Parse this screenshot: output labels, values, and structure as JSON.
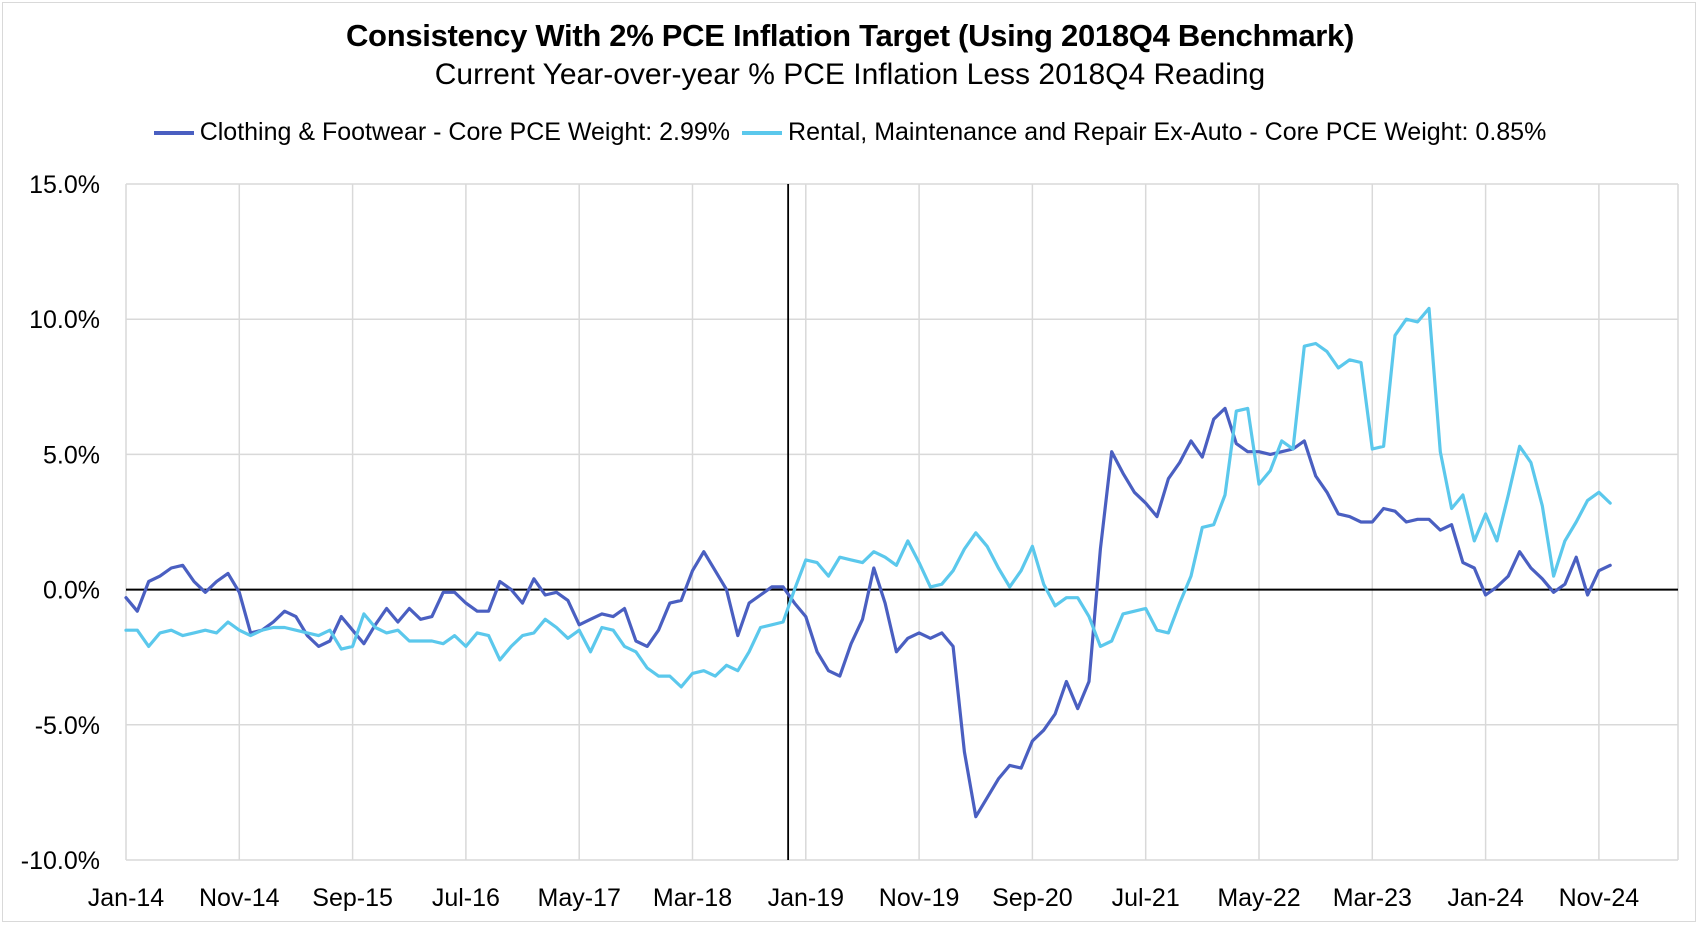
{
  "chart_data": {
    "type": "line",
    "title": "Consistency With 2% PCE Inflation Target (Using 2018Q4 Benchmark)",
    "subtitle": "Current Year-over-year % PCE Inflation Less 2018Q4 Reading",
    "xlabel": "",
    "ylabel": "",
    "ylim": [
      -10,
      15
    ],
    "yticks": [
      -10,
      -5,
      0,
      5,
      10,
      15
    ],
    "ytick_labels": [
      "-10.0%",
      "-5.0%",
      "0.0%",
      "5.0%",
      "10.0%",
      "15.0%"
    ],
    "x_start": "Jan-14",
    "xtick_labels": [
      "Jan-14",
      "Nov-14",
      "Sep-15",
      "Jul-16",
      "May-17",
      "Mar-18",
      "Jan-19",
      "Nov-19",
      "Sep-20",
      "Jul-21",
      "May-22",
      "Mar-23",
      "Jan-24",
      "Nov-24"
    ],
    "grid": "vertical",
    "legend_position": "top",
    "benchmark_marker": "Nov-18",
    "series": [
      {
        "name": "Clothing & Footwear - Core PCE Weight: 2.99%",
        "color": "#4a5fc1",
        "values": [
          -0.3,
          -0.8,
          0.3,
          0.5,
          0.8,
          0.9,
          0.3,
          -0.1,
          0.3,
          0.6,
          -0.1,
          -1.6,
          -1.5,
          -1.2,
          -0.8,
          -1.0,
          -1.7,
          -2.1,
          -1.9,
          -1.0,
          -1.5,
          -2.0,
          -1.3,
          -0.7,
          -1.2,
          -0.7,
          -1.1,
          -1.0,
          -0.1,
          -0.1,
          -0.5,
          -0.8,
          -0.8,
          0.3,
          0.0,
          -0.5,
          0.4,
          -0.2,
          -0.1,
          -0.4,
          -1.3,
          -1.1,
          -0.9,
          -1.0,
          -0.7,
          -1.9,
          -2.1,
          -1.5,
          -0.5,
          -0.4,
          0.7,
          1.4,
          0.7,
          0.0,
          -1.7,
          -0.5,
          -0.2,
          0.1,
          0.1,
          -0.5,
          -1.0,
          -2.3,
          -3.0,
          -3.2,
          -2.0,
          -1.1,
          0.8,
          -0.5,
          -2.3,
          -1.8,
          -1.6,
          -1.8,
          -1.6,
          -2.1,
          -6.0,
          -8.4,
          -7.7,
          -7.0,
          -6.5,
          -6.6,
          -5.6,
          -5.2,
          -4.6,
          -3.4,
          -4.4,
          -3.4,
          1.5,
          5.1,
          4.3,
          3.6,
          3.2,
          2.7,
          4.1,
          4.7,
          5.5,
          4.9,
          6.3,
          6.7,
          5.4,
          5.1,
          5.1,
          5.0,
          5.1,
          5.2,
          5.5,
          4.2,
          3.6,
          2.8,
          2.7,
          2.5,
          2.5,
          3.0,
          2.9,
          2.5,
          2.6,
          2.6,
          2.2,
          2.4,
          1.0,
          0.8,
          -0.2,
          0.1,
          0.5,
          1.4,
          0.8,
          0.4,
          -0.1,
          0.2,
          1.2,
          -0.2,
          0.7,
          0.9
        ]
      },
      {
        "name": "Rental, Maintenance and Repair Ex-Auto - Core PCE Weight: 0.85%",
        "color": "#5bc8ec",
        "values": [
          -1.5,
          -1.5,
          -2.1,
          -1.6,
          -1.5,
          -1.7,
          -1.6,
          -1.5,
          -1.6,
          -1.2,
          -1.5,
          -1.7,
          -1.5,
          -1.4,
          -1.4,
          -1.5,
          -1.6,
          -1.7,
          -1.5,
          -2.2,
          -2.1,
          -0.9,
          -1.4,
          -1.6,
          -1.5,
          -1.9,
          -1.9,
          -1.9,
          -2.0,
          -1.7,
          -2.1,
          -1.6,
          -1.7,
          -2.6,
          -2.1,
          -1.7,
          -1.6,
          -1.1,
          -1.4,
          -1.8,
          -1.5,
          -2.3,
          -1.4,
          -1.5,
          -2.1,
          -2.3,
          -2.9,
          -3.2,
          -3.2,
          -3.6,
          -3.1,
          -3.0,
          -3.2,
          -2.8,
          -3.0,
          -2.3,
          -1.4,
          -1.3,
          -1.2,
          0.0,
          1.1,
          1.0,
          0.5,
          1.2,
          1.1,
          1.0,
          1.4,
          1.2,
          0.9,
          1.8,
          1.0,
          0.1,
          0.2,
          0.7,
          1.5,
          2.1,
          1.6,
          0.8,
          0.1,
          0.7,
          1.6,
          0.2,
          -0.6,
          -0.3,
          -0.3,
          -1.0,
          -2.1,
          -1.9,
          -0.9,
          -0.8,
          -0.7,
          -1.5,
          -1.6,
          -0.5,
          0.5,
          2.3,
          2.4,
          3.5,
          6.6,
          6.7,
          3.9,
          4.4,
          5.5,
          5.2,
          9.0,
          9.1,
          8.8,
          8.2,
          8.5,
          8.4,
          5.2,
          5.3,
          9.4,
          10.0,
          9.9,
          10.4,
          5.1,
          3.0,
          3.5,
          1.8,
          2.8,
          1.8,
          3.5,
          5.3,
          4.7,
          3.1,
          0.5,
          1.8,
          2.5,
          3.3,
          3.6,
          3.2
        ]
      }
    ]
  }
}
